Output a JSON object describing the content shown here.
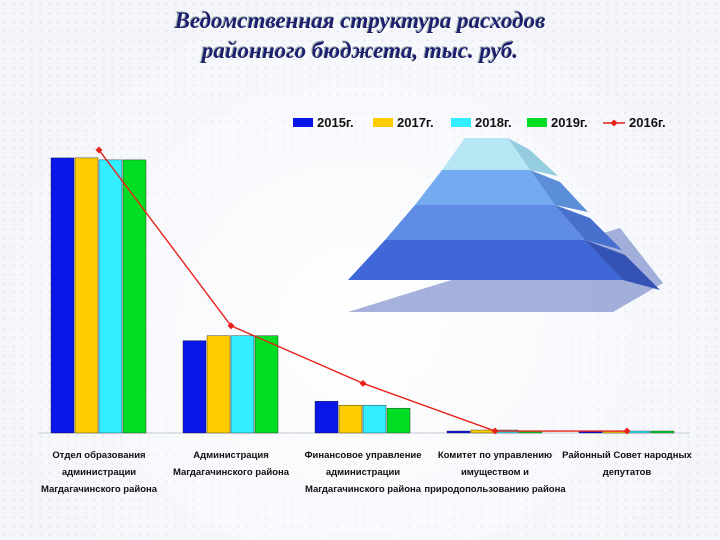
{
  "title": {
    "line1": "Ведомственная структура расходов",
    "line2": "районного бюджета, тыс. руб."
  },
  "chart_data": {
    "type": "bar",
    "title": "Ведомственная структура расходов районного бюджета, тыс. руб.",
    "categories": [
      [
        "Отдел образования",
        "администрации",
        "Магдагачинского района"
      ],
      [
        "Администрация",
        "Магдагачинского района"
      ],
      [
        "Финансовое управление",
        "администрации",
        "Магдагачинского района"
      ],
      [
        "Комитет по управлению",
        "имуществом и",
        "природопользованию района"
      ],
      [
        "Районный Совет народных",
        "депутатов"
      ]
    ],
    "ylim": [
      0,
      290
    ],
    "grid": false,
    "legend_position": "top",
    "series": [
      {
        "name": "2015г.",
        "type": "bar",
        "color": "#0a16e8",
        "values": [
          277,
          93,
          32,
          2,
          2
        ]
      },
      {
        "name": "2017г.",
        "type": "bar",
        "color": "#ffcc00",
        "values": [
          277,
          98,
          28,
          3,
          2
        ]
      },
      {
        "name": "2018г.",
        "type": "bar",
        "color": "#33eeff",
        "values": [
          275,
          98,
          28,
          3,
          2
        ]
      },
      {
        "name": "2019г.",
        "type": "bar",
        "color": "#00dd22",
        "values": [
          275,
          98,
          25,
          2,
          2
        ]
      },
      {
        "name": "2016г.",
        "type": "line",
        "color": "#e8221a",
        "values": [
          285,
          108,
          50,
          2,
          2
        ]
      }
    ]
  }
}
